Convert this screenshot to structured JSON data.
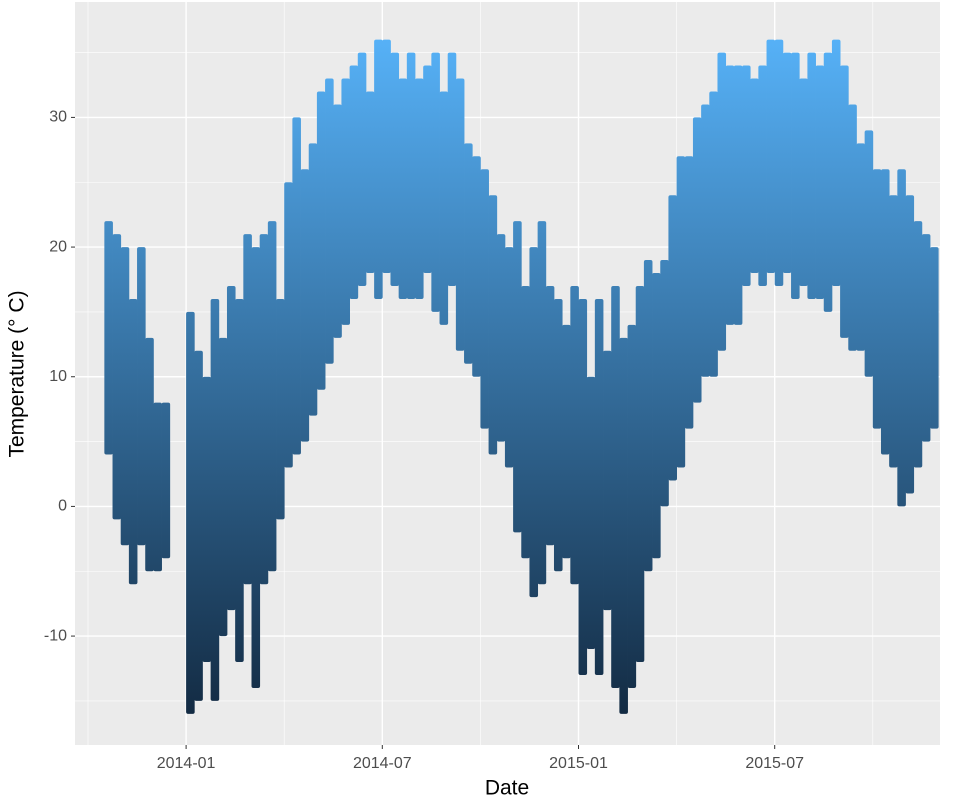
{
  "chart_data": {
    "type": "range",
    "x_label": "Date",
    "y_label": "Temperature (° C)",
    "categories": [
      "2013-10",
      "2013-11",
      "2013-12",
      "2014-01",
      "2014-02",
      "2014-03",
      "2014-04",
      "2014-05",
      "2014-06",
      "2014-07",
      "2014-08",
      "2014-09",
      "2014-10",
      "2014-11",
      "2014-12",
      "2015-01",
      "2015-02",
      "2015-03",
      "2015-04",
      "2015-05",
      "2015-06",
      "2015-07",
      "2015-08",
      "2015-09",
      "2015-10",
      "2015-11"
    ],
    "low": [
      [
        null,
        null,
        4,
        -1
      ],
      [
        -3,
        -6,
        -3,
        -5
      ],
      [
        -5,
        -4,
        null,
        null
      ],
      [
        -16,
        -15,
        -12,
        -15
      ],
      [
        -10,
        -8,
        -12,
        -6
      ],
      [
        -14,
        -6,
        -5,
        -1
      ],
      [
        3,
        4,
        5,
        7
      ],
      [
        9,
        11,
        13,
        14
      ],
      [
        16,
        17,
        18,
        16
      ],
      [
        18,
        17,
        16,
        16
      ],
      [
        16,
        18,
        15,
        14
      ],
      [
        17,
        12,
        11,
        10
      ],
      [
        6,
        4,
        5,
        3
      ],
      [
        -2,
        -4,
        -7,
        -6
      ],
      [
        -3,
        -5,
        -4,
        -6
      ],
      [
        -13,
        -11,
        -13,
        -8
      ],
      [
        -14,
        -16,
        -14,
        -12
      ],
      [
        -5,
        -4,
        0,
        2
      ],
      [
        3,
        6,
        8,
        10
      ],
      [
        10,
        12,
        14,
        14
      ],
      [
        17,
        18,
        17,
        18
      ],
      [
        17,
        18,
        16,
        17
      ],
      [
        16,
        16,
        15,
        17
      ],
      [
        13,
        12,
        12,
        10
      ],
      [
        6,
        4,
        3,
        0
      ],
      [
        1,
        3,
        5,
        6
      ]
    ],
    "high": [
      [
        null,
        null,
        22,
        21
      ],
      [
        20,
        16,
        20,
        13
      ],
      [
        8,
        8,
        null,
        null
      ],
      [
        15,
        12,
        10,
        16
      ],
      [
        13,
        17,
        16,
        21
      ],
      [
        20,
        21,
        22,
        16
      ],
      [
        25,
        30,
        26,
        28
      ],
      [
        32,
        33,
        31,
        33
      ],
      [
        34,
        35,
        32,
        36
      ],
      [
        36,
        35,
        33,
        35
      ],
      [
        33,
        34,
        35,
        32
      ],
      [
        35,
        33,
        28,
        27
      ],
      [
        26,
        24,
        21,
        20
      ],
      [
        22,
        17,
        20,
        22
      ],
      [
        17,
        16,
        14,
        17
      ],
      [
        16,
        10,
        16,
        12
      ],
      [
        17,
        13,
        14,
        17
      ],
      [
        19,
        18,
        19,
        24
      ],
      [
        27,
        27,
        30,
        31
      ],
      [
        32,
        35,
        34,
        34
      ],
      [
        34,
        33,
        34,
        36
      ],
      [
        36,
        35,
        35,
        33
      ],
      [
        35,
        34,
        35,
        36
      ],
      [
        34,
        31,
        28,
        29
      ],
      [
        26,
        26,
        24,
        26
      ],
      [
        24,
        22,
        21,
        20
      ]
    ],
    "xticks": [
      "2014-01",
      "2014-07",
      "2015-01",
      "2015-07"
    ],
    "ylim": [
      -18.4,
      38.9
    ],
    "yticks": [
      -10,
      0,
      10,
      20,
      30
    ],
    "color_low": "#132B43",
    "color_high": "#56B1F7",
    "grid": true
  }
}
